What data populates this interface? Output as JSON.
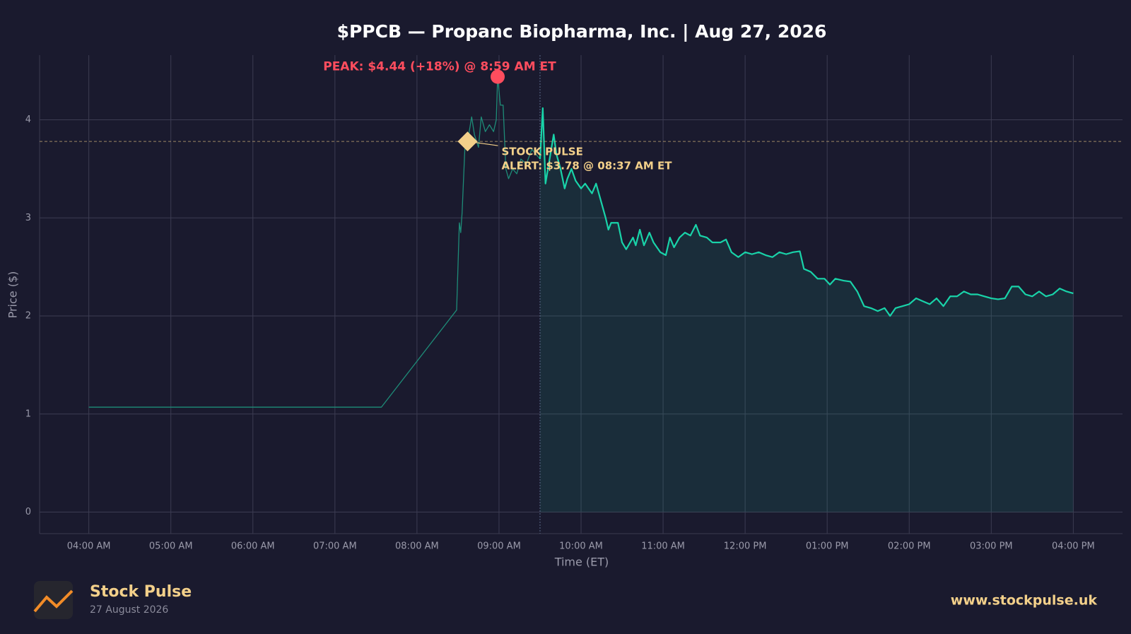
{
  "chart_data": {
    "type": "line",
    "title": "$PPCB — Propanc Biopharma, Inc.  |  Aug 27, 2026",
    "x_label": "Time (ET)",
    "y_label": "Price ($)",
    "xlim": [
      204,
      996
    ],
    "ylim": [
      -0.22,
      4.66
    ],
    "xticks": [
      {
        "value": 240,
        "label": "04:00 AM"
      },
      {
        "value": 300,
        "label": "05:00 AM"
      },
      {
        "value": 360,
        "label": "06:00 AM"
      },
      {
        "value": 420,
        "label": "07:00 AM"
      },
      {
        "value": 480,
        "label": "08:00 AM"
      },
      {
        "value": 540,
        "label": "09:00 AM"
      },
      {
        "value": 600,
        "label": "10:00 AM"
      },
      {
        "value": 660,
        "label": "11:00 AM"
      },
      {
        "value": 720,
        "label": "12:00 PM"
      },
      {
        "value": 780,
        "label": "01:00 PM"
      },
      {
        "value": 840,
        "label": "02:00 PM"
      },
      {
        "value": 900,
        "label": "03:00 PM"
      },
      {
        "value": 960,
        "label": "04:00 PM"
      }
    ],
    "yticks": [
      0,
      1,
      2,
      3,
      4
    ],
    "grid": true,
    "series": [
      {
        "color": "#1e8c78",
        "x": [
          240,
          454,
          509,
          511,
          512,
          513,
          515,
          517,
          520,
          522,
          525,
          527,
          530,
          533,
          536,
          538,
          539,
          541,
          543,
          545,
          547,
          550,
          553,
          556,
          560,
          564,
          567,
          570
        ],
        "values": [
          1.07,
          1.07,
          2.06,
          2.95,
          2.85,
          3.05,
          3.7,
          3.78,
          4.03,
          3.85,
          3.72,
          4.03,
          3.88,
          3.95,
          3.88,
          4.0,
          4.44,
          4.15,
          4.15,
          3.5,
          3.4,
          3.5,
          3.45,
          3.6,
          3.55,
          3.7,
          3.65,
          3.6
        ]
      },
      {
        "color": "#19d3a9",
        "x": [
          570,
          572,
          574,
          577,
          580,
          582,
          585,
          588,
          590,
          593,
          596,
          600,
          603,
          608,
          611,
          614,
          618,
          620,
          622,
          627,
          630,
          633,
          638,
          640,
          643,
          646,
          650,
          653,
          658,
          662,
          665,
          668,
          672,
          676,
          680,
          684,
          687,
          692,
          696,
          702,
          706,
          710,
          715,
          720,
          725,
          730,
          735,
          740,
          745,
          750,
          755,
          760,
          763,
          768,
          773,
          778,
          782,
          786,
          792,
          797,
          802,
          807,
          812,
          817,
          822,
          826,
          830,
          835,
          840,
          845,
          850,
          855,
          860,
          865,
          870,
          875,
          880,
          885,
          890,
          895,
          900,
          905,
          910,
          915,
          920,
          925,
          930,
          935,
          940,
          945,
          950,
          955,
          960
        ],
        "values": [
          3.6,
          4.12,
          3.35,
          3.6,
          3.85,
          3.65,
          3.5,
          3.3,
          3.4,
          3.5,
          3.38,
          3.3,
          3.35,
          3.25,
          3.35,
          3.2,
          3.0,
          2.88,
          2.95,
          2.95,
          2.75,
          2.68,
          2.8,
          2.72,
          2.88,
          2.72,
          2.85,
          2.75,
          2.65,
          2.62,
          2.8,
          2.7,
          2.8,
          2.85,
          2.82,
          2.93,
          2.82,
          2.8,
          2.75,
          2.75,
          2.78,
          2.65,
          2.6,
          2.65,
          2.63,
          2.65,
          2.62,
          2.6,
          2.65,
          2.63,
          2.65,
          2.66,
          2.48,
          2.45,
          2.38,
          2.38,
          2.32,
          2.38,
          2.36,
          2.35,
          2.25,
          2.1,
          2.08,
          2.05,
          2.08,
          2.0,
          2.08,
          2.1,
          2.12,
          2.18,
          2.15,
          2.12,
          2.18,
          2.1,
          2.2,
          2.2,
          2.25,
          2.22,
          2.22,
          2.2,
          2.18,
          2.17,
          2.18,
          2.3,
          2.3,
          2.22,
          2.2,
          2.25,
          2.2,
          2.22,
          2.28,
          2.25,
          2.23
        ]
      }
    ],
    "peak": {
      "text": "PEAK: $4.44 (+18%) @ 8:59 AM ET",
      "x": 539,
      "y": 4.44,
      "color": "#ff4d5e"
    },
    "alert": {
      "lines": [
        "STOCK PULSE",
        "ALERT: $3.78 @ 08:37 AM ET"
      ],
      "x": 517,
      "y": 3.78,
      "color": "#f3d08a"
    }
  },
  "footer": {
    "brand": "Stock Pulse",
    "date": "27 August 2026",
    "url": "www.stockpulse.uk"
  }
}
